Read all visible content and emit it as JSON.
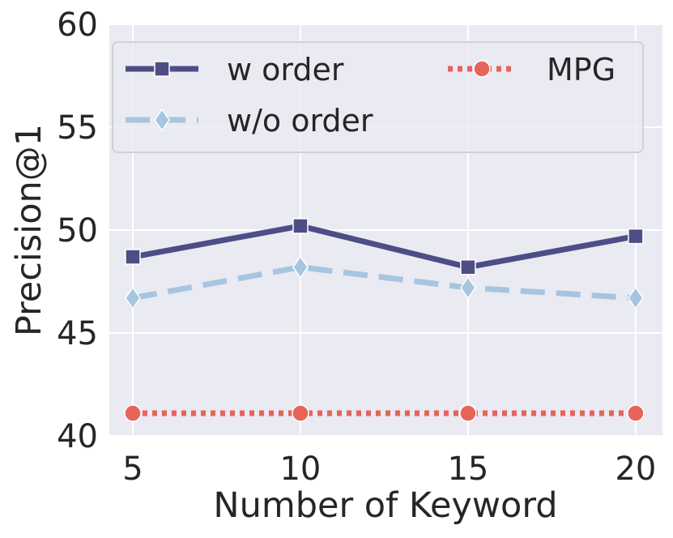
{
  "chart_data": {
    "type": "line",
    "xlabel": "Number of Keyword",
    "ylabel": "Precision@1",
    "x": [
      5,
      10,
      15,
      20
    ],
    "xticks": [
      "5",
      "10",
      "15",
      "20"
    ],
    "ylim": [
      40,
      60
    ],
    "yticks": [
      "40",
      "45",
      "50",
      "55",
      "60"
    ],
    "grid": true,
    "legend_position": "top",
    "series": [
      {
        "name": "w order",
        "values": [
          48.7,
          50.2,
          48.2,
          49.7
        ],
        "color": "#4d4e85",
        "marker": "square",
        "linestyle": "solid"
      },
      {
        "name": "w/o order",
        "values": [
          46.7,
          48.2,
          47.2,
          46.7
        ],
        "color": "#a6c5e0",
        "marker": "diamond",
        "linestyle": "dashed"
      },
      {
        "name": "MPG",
        "values": [
          41.1,
          41.1,
          41.1,
          41.1
        ],
        "color": "#e6645a",
        "marker": "circle",
        "linestyle": "dotted"
      }
    ]
  }
}
